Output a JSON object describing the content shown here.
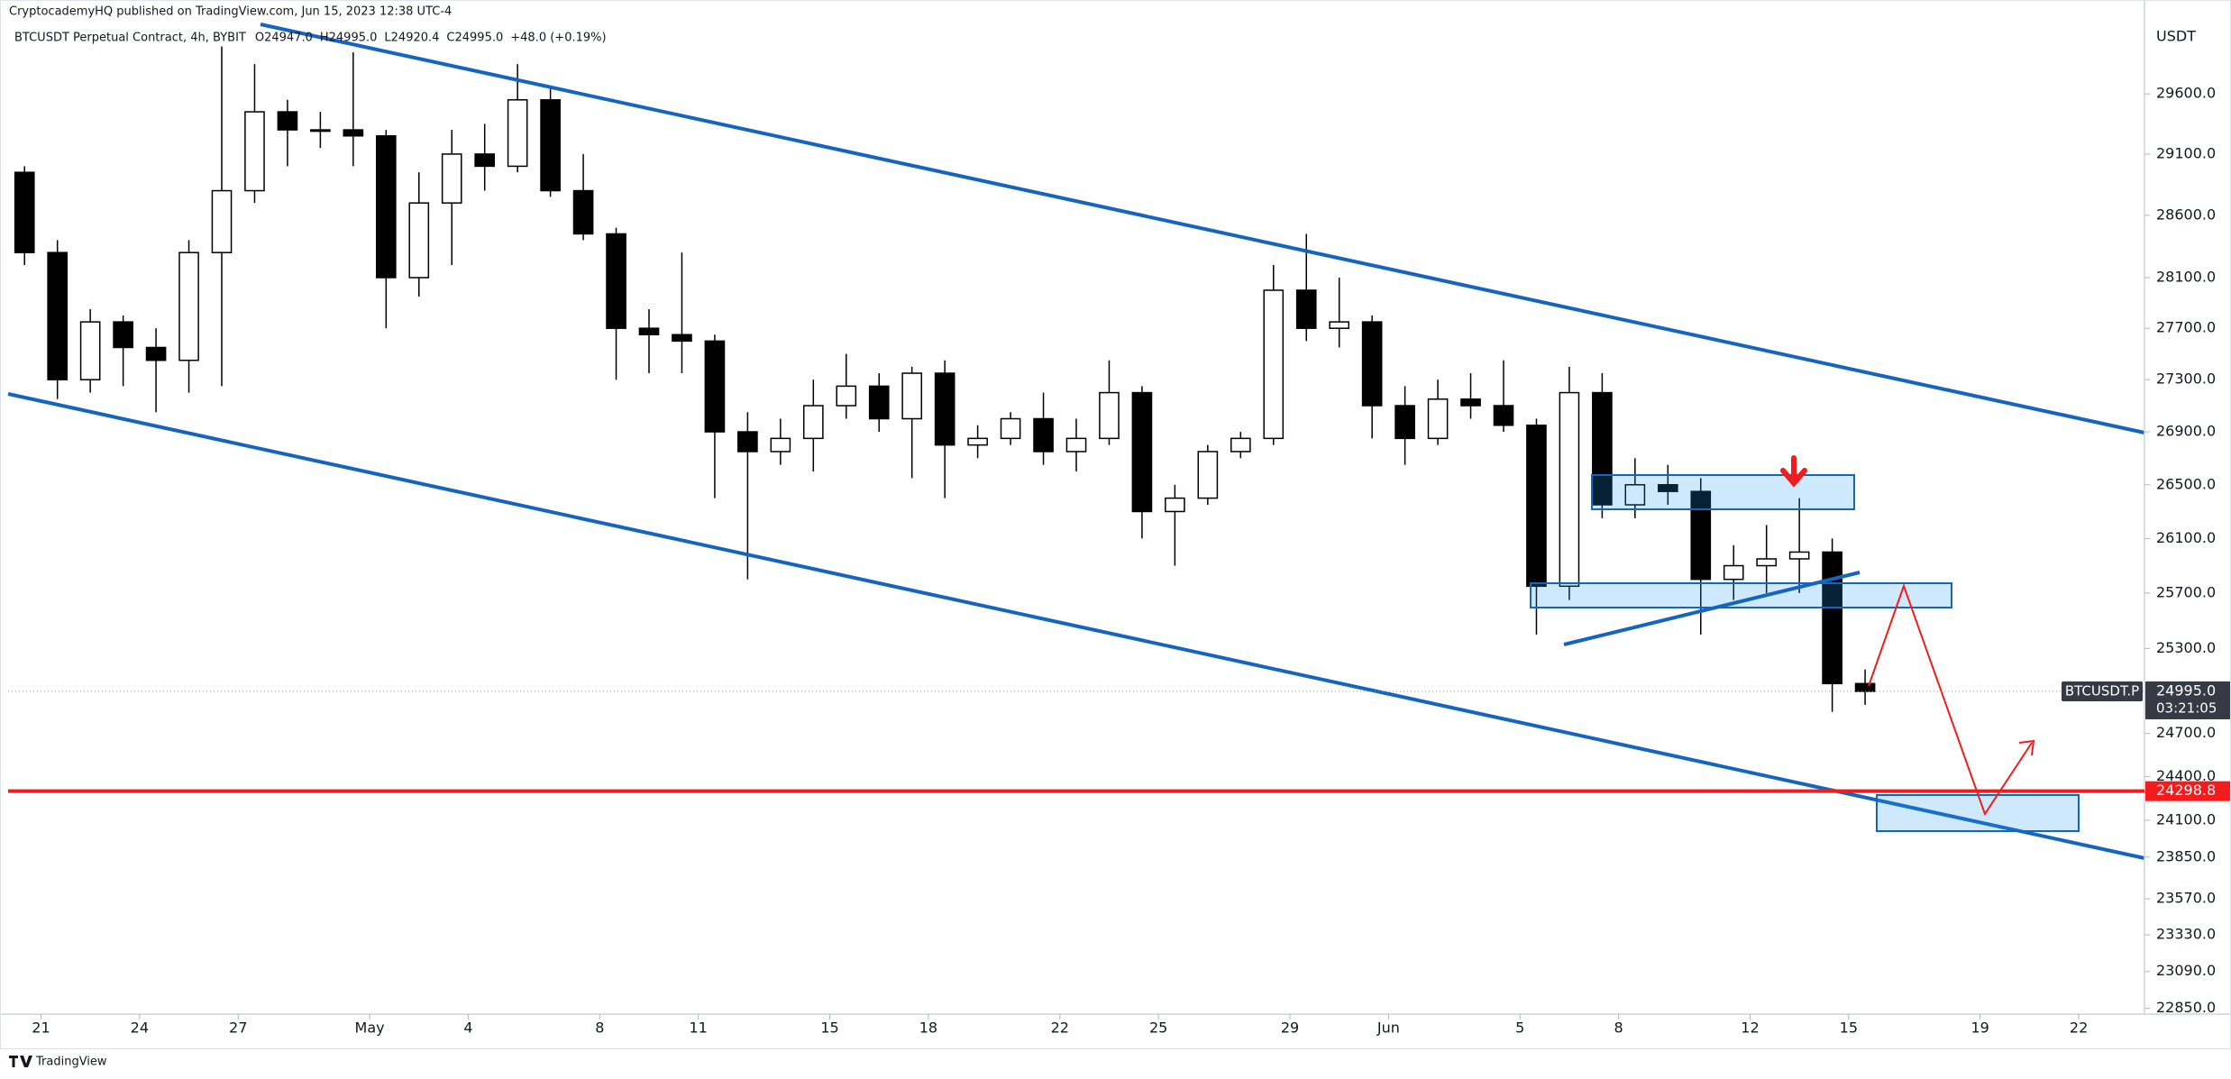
{
  "header": {
    "published": "CryptocademyHQ published on TradingView.com, Jun 15, 2023 12:38 UTC-4",
    "symbol_line": "BTCUSDT Perpetual Contract, 4h, BYBIT",
    "legend_values": [
      "O24947.0",
      "H24995.0",
      "L24920.4",
      "C24995.0",
      "+48.0 (+0.19%)"
    ]
  },
  "footer": {
    "brand": "TradingView"
  },
  "chart_data": {
    "type": "candlestick",
    "log_scale": true,
    "grid": false,
    "y_unit": "USDT",
    "up_color": "#ffffff",
    "down_color": "#000000",
    "wick_color": "#000000",
    "x": [
      "04-20",
      "04-21",
      "04-22",
      "04-23",
      "04-24",
      "04-25",
      "04-26",
      "04-27",
      "04-28",
      "04-29",
      "04-30",
      "05-01",
      "05-02",
      "05-03",
      "05-04",
      "05-05",
      "05-06",
      "05-07",
      "05-08",
      "05-09",
      "05-10",
      "05-11",
      "05-12",
      "05-13",
      "05-14",
      "05-15",
      "05-16",
      "05-17",
      "05-18",
      "05-19",
      "05-20",
      "05-21",
      "05-22",
      "05-23",
      "05-24",
      "05-25",
      "05-26",
      "05-27",
      "05-28",
      "05-29",
      "05-30",
      "05-31",
      "06-01",
      "06-02",
      "06-03",
      "06-04",
      "06-05",
      "06-06",
      "06-07",
      "06-08",
      "06-09",
      "06-10",
      "06-11",
      "06-12",
      "06-13",
      "06-14",
      "06-15"
    ],
    "open": [
      28950,
      28300,
      27300,
      27750,
      27550,
      27450,
      28300,
      28800,
      29450,
      29300,
      29300,
      29250,
      28100,
      28700,
      29100,
      29000,
      29550,
      28800,
      28450,
      27700,
      27650,
      27600,
      26900,
      26750,
      26850,
      27100,
      27250,
      27000,
      27350,
      26800,
      26850,
      27000,
      26750,
      26850,
      27200,
      26300,
      26400,
      26750,
      26850,
      28000,
      27700,
      27750,
      27100,
      26850,
      27150,
      27100,
      26950,
      25750,
      27200,
      26350,
      26500,
      26450,
      25800,
      25900,
      25950,
      26000,
      25050
    ],
    "high": [
      29000,
      28400,
      27850,
      27800,
      27700,
      28400,
      30000,
      29850,
      29550,
      29450,
      29950,
      29300,
      28950,
      29300,
      29350,
      29850,
      29650,
      29100,
      28500,
      27850,
      28300,
      27650,
      27050,
      27000,
      27300,
      27500,
      27350,
      27400,
      27450,
      26950,
      27050,
      27200,
      27000,
      27450,
      27250,
      26500,
      26800,
      26900,
      28200,
      28450,
      28100,
      27800,
      27250,
      27300,
      27350,
      27450,
      27000,
      27400,
      27350,
      26700,
      26650,
      26550,
      26050,
      26200,
      26400,
      26100,
      25150
    ],
    "low": [
      28200,
      27150,
      27200,
      27250,
      27050,
      27200,
      27250,
      28700,
      29000,
      29150,
      29000,
      27700,
      27950,
      28200,
      28800,
      28950,
      28750,
      28400,
      27300,
      27350,
      27350,
      26400,
      25800,
      26650,
      26600,
      27000,
      26900,
      26550,
      26400,
      26700,
      26800,
      26650,
      26600,
      26800,
      26100,
      25900,
      26350,
      26700,
      26800,
      27600,
      27550,
      26850,
      26650,
      26800,
      27000,
      26900,
      25400,
      25650,
      26250,
      26250,
      26350,
      25400,
      25650,
      25700,
      25700,
      24850,
      24900
    ],
    "close": [
      28300,
      27300,
      27750,
      27550,
      27450,
      28300,
      28800,
      29450,
      29300,
      29300,
      29250,
      28100,
      28700,
      29100,
      29000,
      29550,
      28800,
      28450,
      27700,
      27650,
      27600,
      26900,
      26750,
      26850,
      27100,
      27250,
      27000,
      27350,
      26800,
      26850,
      27000,
      26750,
      26850,
      27200,
      26300,
      26400,
      26750,
      26850,
      28000,
      27700,
      27750,
      27100,
      26850,
      27150,
      27100,
      26950,
      25750,
      27200,
      26350,
      26500,
      26450,
      25800,
      25900,
      25950,
      26000,
      25050,
      24995
    ],
    "xlim": [
      "04-20",
      "06-24"
    ],
    "xticks": [
      {
        "value": "04-21",
        "label": "21"
      },
      {
        "value": "04-24",
        "label": "24"
      },
      {
        "value": "04-27",
        "label": "27"
      },
      {
        "value": "05-01",
        "label": "May"
      },
      {
        "value": "05-04",
        "label": "4"
      },
      {
        "value": "05-08",
        "label": "8"
      },
      {
        "value": "05-11",
        "label": "11"
      },
      {
        "value": "05-15",
        "label": "15"
      },
      {
        "value": "05-18",
        "label": "18"
      },
      {
        "value": "05-22",
        "label": "22"
      },
      {
        "value": "05-25",
        "label": "25"
      },
      {
        "value": "05-29",
        "label": "29"
      },
      {
        "value": "06-01",
        "label": "Jun"
      },
      {
        "value": "06-05",
        "label": "5"
      },
      {
        "value": "06-08",
        "label": "8"
      },
      {
        "value": "06-12",
        "label": "12"
      },
      {
        "value": "06-15",
        "label": "15"
      },
      {
        "value": "06-19",
        "label": "19"
      },
      {
        "value": "06-22",
        "label": "22"
      }
    ],
    "ylim": [
      22813,
      30397
    ],
    "yticks": [
      {
        "value": 29600,
        "label": "29600.0"
      },
      {
        "value": 29100,
        "label": "29100.0"
      },
      {
        "value": 28600,
        "label": "28600.0"
      },
      {
        "value": 28100,
        "label": "28100.0"
      },
      {
        "value": 27700,
        "label": "27700.0"
      },
      {
        "value": 27300,
        "label": "27300.0"
      },
      {
        "value": 26900,
        "label": "26900.0"
      },
      {
        "value": 26500,
        "label": "26500.0"
      },
      {
        "value": 26100,
        "label": "26100.0"
      },
      {
        "value": 25700,
        "label": "25700.0"
      },
      {
        "value": 25300,
        "label": "25300.0"
      },
      {
        "value": 24700,
        "label": "24700.0"
      },
      {
        "value": 24400,
        "label": "24400.0"
      },
      {
        "value": 24100,
        "label": "24100.0"
      },
      {
        "value": 23850,
        "label": "23850.0"
      },
      {
        "value": 23570,
        "label": "23570.0"
      },
      {
        "value": 23330,
        "label": "23330.0"
      },
      {
        "value": 23090,
        "label": "23090.0"
      },
      {
        "value": 22850,
        "label": "22850.0"
      }
    ],
    "price_line": {
      "value": 24298.8,
      "label": "24298.8",
      "color": "#f21c1c"
    },
    "last_price": {
      "value": 24995.0,
      "label": "24995.0",
      "symbol": "BTCUSDT.P",
      "countdown": "03:21:05",
      "color": "#363a45"
    }
  }
}
